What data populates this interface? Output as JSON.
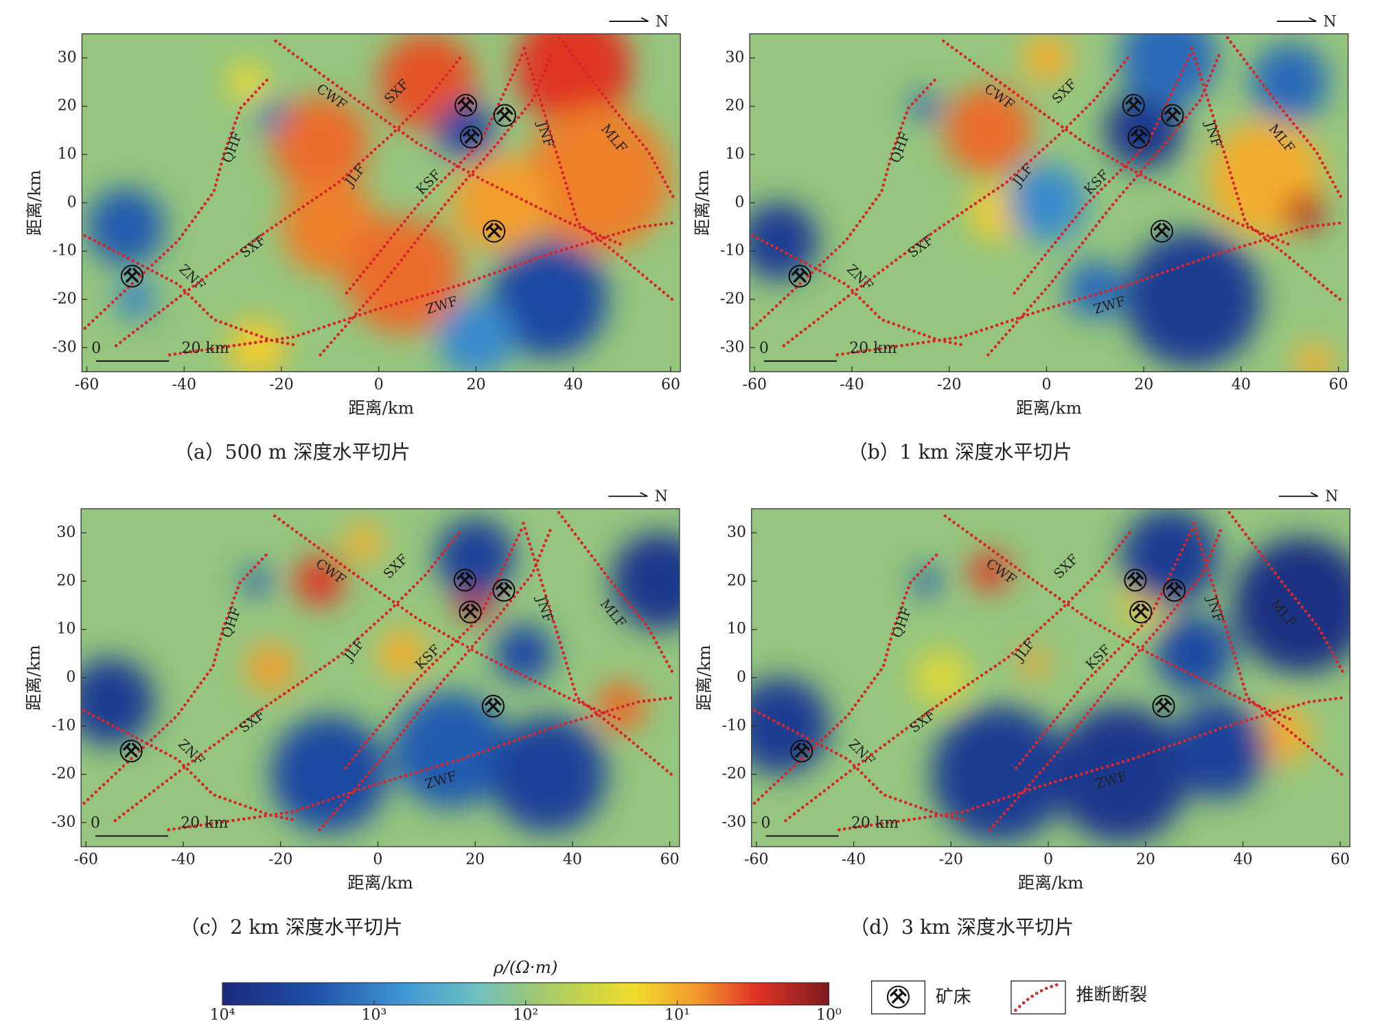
{
  "chart_data": [
    {
      "type": "heatmap",
      "caption": "（a）500 m 深度水平切片",
      "xlabel": "距离/km",
      "ylabel": "距离/km",
      "north": "N",
      "xlim": [
        -61,
        62
      ],
      "ylim": [
        -35,
        35
      ],
      "xticks": [
        -60,
        -40,
        -20,
        0,
        20,
        40,
        60
      ],
      "yticks": [
        -30,
        -20,
        -10,
        0,
        10,
        20,
        30
      ],
      "background": 100,
      "blobs": [
        {
          "x": -12,
          "y": 12,
          "r": 10,
          "v": 5
        },
        {
          "x": -10,
          "y": -5,
          "r": 10,
          "v": 6
        },
        {
          "x": 5,
          "y": -15,
          "r": 12,
          "v": 5
        },
        {
          "x": 10,
          "y": 25,
          "r": 10,
          "v": 4
        },
        {
          "x": 40,
          "y": 28,
          "r": 12,
          "v": 3
        },
        {
          "x": 45,
          "y": 5,
          "r": 15,
          "v": 6
        },
        {
          "x": 25,
          "y": 0,
          "r": 10,
          "v": 8
        },
        {
          "x": -27,
          "y": 25,
          "r": 4,
          "v": 20
        },
        {
          "x": 18,
          "y": 15,
          "r": 6,
          "v": 3000
        },
        {
          "x": -52,
          "y": -5,
          "r": 8,
          "v": 2000
        },
        {
          "x": -50,
          "y": -20,
          "r": 4,
          "v": 1000
        },
        {
          "x": 35,
          "y": -20,
          "r": 12,
          "v": 3000
        },
        {
          "x": 20,
          "y": -28,
          "r": 8,
          "v": 800
        },
        {
          "x": -25,
          "y": -30,
          "r": 6,
          "v": 15
        },
        {
          "x": -22,
          "y": 18,
          "r": 3,
          "v": 1500
        }
      ]
    },
    {
      "type": "heatmap",
      "caption": "（b）1 km 深度水平切片",
      "xlabel": "距离/km",
      "ylabel": "距离/km",
      "north": "N",
      "xlim": [
        -61,
        62
      ],
      "ylim": [
        -35,
        35
      ],
      "xticks": [
        -60,
        -40,
        -20,
        0,
        20,
        40,
        60
      ],
      "yticks": [
        -30,
        -20,
        -10,
        0,
        10,
        20,
        30
      ],
      "background": 100,
      "blobs": [
        {
          "x": -12,
          "y": 15,
          "r": 9,
          "v": 5
        },
        {
          "x": -10,
          "y": -2,
          "r": 6,
          "v": 15
        },
        {
          "x": 45,
          "y": 5,
          "r": 12,
          "v": 10
        },
        {
          "x": 53,
          "y": -2,
          "r": 4,
          "v": 2
        },
        {
          "x": 10,
          "y": -18,
          "r": 6,
          "v": 1500
        },
        {
          "x": 30,
          "y": -20,
          "r": 14,
          "v": 5000
        },
        {
          "x": 20,
          "y": 15,
          "r": 8,
          "v": 6000
        },
        {
          "x": -55,
          "y": -8,
          "r": 8,
          "v": 5000
        },
        {
          "x": 0,
          "y": 0,
          "r": 8,
          "v": 800
        },
        {
          "x": 25,
          "y": 30,
          "r": 10,
          "v": 1500
        },
        {
          "x": 0,
          "y": 30,
          "r": 5,
          "v": 10
        },
        {
          "x": 50,
          "y": 25,
          "r": 8,
          "v": 1500
        },
        {
          "x": -25,
          "y": 20,
          "r": 3,
          "v": 2000
        },
        {
          "x": 55,
          "y": -33,
          "r": 4,
          "v": 10
        }
      ]
    },
    {
      "type": "heatmap",
      "caption": "（c）2 km 深度水平切片",
      "xlabel": "距离/km",
      "ylabel": "距离/km",
      "north": "N",
      "xlim": [
        -61,
        62
      ],
      "ylim": [
        -35,
        35
      ],
      "xticks": [
        -60,
        -40,
        -20,
        0,
        20,
        40,
        60
      ],
      "yticks": [
        -30,
        -20,
        -10,
        0,
        10,
        20,
        30
      ],
      "background": 100,
      "blobs": [
        {
          "x": -12,
          "y": 20,
          "r": 5,
          "v": 3
        },
        {
          "x": -3,
          "y": 28,
          "r": 4,
          "v": 10
        },
        {
          "x": -22,
          "y": 2,
          "r": 5,
          "v": 8
        },
        {
          "x": 50,
          "y": -6,
          "r": 5,
          "v": 5
        },
        {
          "x": 20,
          "y": 16,
          "r": 4,
          "v": 2
        },
        {
          "x": -55,
          "y": -5,
          "r": 9,
          "v": 5000
        },
        {
          "x": -10,
          "y": -20,
          "r": 12,
          "v": 3000
        },
        {
          "x": 15,
          "y": -15,
          "r": 12,
          "v": 2000
        },
        {
          "x": 35,
          "y": -20,
          "r": 12,
          "v": 4000
        },
        {
          "x": 58,
          "y": 20,
          "r": 10,
          "v": 6000
        },
        {
          "x": 20,
          "y": 25,
          "r": 8,
          "v": 4000
        },
        {
          "x": 5,
          "y": 5,
          "r": 5,
          "v": 10
        },
        {
          "x": 30,
          "y": 5,
          "r": 6,
          "v": 3000
        },
        {
          "x": -25,
          "y": 20,
          "r": 3,
          "v": 2000
        }
      ]
    },
    {
      "type": "heatmap",
      "caption": "（d）3 km 深度水平切片",
      "xlabel": "距离/km",
      "ylabel": "距离/km",
      "north": "N",
      "xlim": [
        -61,
        62
      ],
      "ylim": [
        -35,
        35
      ],
      "xticks": [
        -60,
        -40,
        -20,
        0,
        20,
        40,
        60
      ],
      "yticks": [
        -30,
        -20,
        -10,
        0,
        10,
        20,
        30
      ],
      "background": 100,
      "blobs": [
        {
          "x": -12,
          "y": 22,
          "r": 4,
          "v": 3
        },
        {
          "x": -22,
          "y": 0,
          "r": 6,
          "v": 30
        },
        {
          "x": 48,
          "y": -12,
          "r": 6,
          "v": 10
        },
        {
          "x": -3,
          "y": 3,
          "r": 3,
          "v": 8
        },
        {
          "x": 20,
          "y": 16,
          "r": 5,
          "v": 15
        },
        {
          "x": -55,
          "y": -10,
          "r": 10,
          "v": 5000
        },
        {
          "x": -10,
          "y": -20,
          "r": 14,
          "v": 5000
        },
        {
          "x": 15,
          "y": -20,
          "r": 14,
          "v": 6000
        },
        {
          "x": 35,
          "y": -15,
          "r": 10,
          "v": 4000
        },
        {
          "x": 52,
          "y": 15,
          "r": 14,
          "v": 8000
        },
        {
          "x": 25,
          "y": 25,
          "r": 10,
          "v": 5000
        },
        {
          "x": 30,
          "y": 5,
          "r": 8,
          "v": 3000
        },
        {
          "x": -25,
          "y": 20,
          "r": 3,
          "v": 2000
        }
      ]
    }
  ],
  "overlay": {
    "faults": [
      {
        "name": "QHF",
        "x": [
          -60.4,
          -41.2,
          -33.9,
          -31.7,
          -28.4,
          -23
        ],
        "y": [
          -26,
          -7.8,
          2.3,
          10.5,
          19.6,
          25.4
        ],
        "labels": [
          {
            "x": -29.9,
            "y": 11.4
          }
        ]
      },
      {
        "name": "ZNF",
        "x": [
          -60.4,
          -41.2,
          -33.9,
          -22,
          -17
        ],
        "y": [
          -6.8,
          -16.9,
          -24.2,
          -28.5,
          -29.5
        ],
        "labels": [
          {
            "x": -38.5,
            "y": -15.6
          }
        ]
      },
      {
        "name": "ZWF",
        "x": [
          -43,
          -17.5,
          -1.1,
          17.1,
          35.4,
          53.6,
          60.9
        ],
        "y": [
          -31.5,
          -27.8,
          -22.3,
          -16.9,
          -10.5,
          -5,
          -4.1
        ],
        "labels": [
          {
            "x": 13,
            "y": -21.4
          }
        ]
      },
      {
        "name": "SXF",
        "x": [
          -54,
          -37.6,
          -23,
          -8.4,
          2.6,
          9.9,
          17.1
        ],
        "y": [
          -29.6,
          -16.9,
          -5.9,
          4.1,
          14.1,
          21.4,
          30.5
        ],
        "labels": [
          {
            "x": -25.7,
            "y": -9.2
          },
          {
            "x": 3.8,
            "y": 22.9
          }
        ]
      },
      {
        "name": "CWF",
        "x": [
          -21.2,
          -4.7,
          8,
          20.8,
          39,
          50
        ],
        "y": [
          33.5,
          21.4,
          12.3,
          5,
          -4.1,
          -8.7
        ],
        "labels": [
          {
            "x": -9.8,
            "y": 21.8
          }
        ]
      },
      {
        "name": "JLF",
        "x": [
          -12,
          0.7,
          13.5,
          24.4,
          31.7,
          35.4
        ],
        "y": [
          -31.5,
          -16.9,
          -0.5,
          12.3,
          21.4,
          30.5
        ],
        "labels": [
          {
            "x": -4.7,
            "y": 5.6
          }
        ]
      },
      {
        "name": "KSF",
        "x": [
          -6.6,
          8,
          20.8,
          29.9
        ],
        "y": [
          -18.7,
          -0.5,
          12.3,
          31.5
        ],
        "labels": [
          {
            "x": 10.4,
            "y": 4.1
          }
        ]
      },
      {
        "name": "JNF",
        "x": [
          29.9,
          35.4,
          40.9,
          50,
          60.9
        ],
        "y": [
          32,
          14.1,
          -4.1,
          -11.4,
          -20.5
        ],
        "labels": [
          {
            "x": 34.1,
            "y": 14.1
          }
        ]
      },
      {
        "name": "MLF",
        "x": [
          37.2,
          48.2,
          55.5,
          60.9
        ],
        "y": [
          34.2,
          19.6,
          10.5,
          0.5
        ],
        "labels": [
          {
            "x": 48.2,
            "y": 13.2
          }
        ]
      }
    ],
    "mines": [
      {
        "x": -50.7,
        "y": -15.2
      },
      {
        "x": 17.9,
        "y": 20.2
      },
      {
        "x": 25.9,
        "y": 18.1
      },
      {
        "x": 19,
        "y": 13.6
      },
      {
        "x": 23.7,
        "y": -5.9
      }
    ],
    "scale_bar": {
      "labels": [
        "0",
        "20 km"
      ]
    },
    "colorbar": {
      "title": "ρ/(Ω·m)",
      "log": true,
      "lim": [
        10000,
        1
      ],
      "ticks": [
        {
          "value": 10000,
          "label": "10⁴"
        },
        {
          "value": 1000,
          "label": "10³"
        },
        {
          "value": 100,
          "label": "10²"
        },
        {
          "value": 10,
          "label": "10¹"
        },
        {
          "value": 1,
          "label": "10⁰"
        }
      ]
    },
    "legend": [
      "矿床",
      "推断断裂"
    ]
  }
}
